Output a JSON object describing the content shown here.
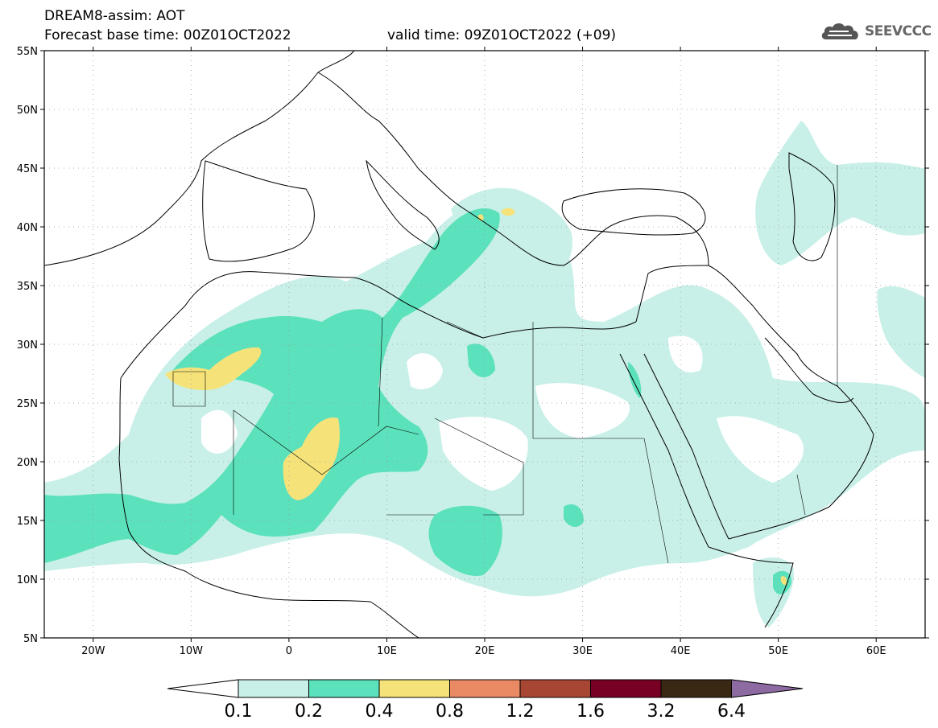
{
  "header": {
    "model_line": "DREAM8-assim: AOT",
    "base_time_line": "Forecast base time: 00Z01OCT2022",
    "valid_time_line": "valid time: 09Z01OCT2022 (+09)"
  },
  "logo": {
    "text": "SEEVCCC",
    "icon": "cloud-icon"
  },
  "map": {
    "lon_range": [
      -25,
      65
    ],
    "lat_range": [
      5,
      55
    ],
    "lat_ticks": [
      {
        "value": 55,
        "label": "55N"
      },
      {
        "value": 50,
        "label": "50N"
      },
      {
        "value": 45,
        "label": "45N"
      },
      {
        "value": 40,
        "label": "40N"
      },
      {
        "value": 35,
        "label": "35N"
      },
      {
        "value": 30,
        "label": "30N"
      },
      {
        "value": 25,
        "label": "25N"
      },
      {
        "value": 20,
        "label": "20N"
      },
      {
        "value": 15,
        "label": "15N"
      },
      {
        "value": 10,
        "label": "10N"
      },
      {
        "value": 5,
        "label": "5N"
      }
    ],
    "lon_ticks": [
      {
        "value": -20,
        "label": "20W"
      },
      {
        "value": -10,
        "label": "10W"
      },
      {
        "value": 0,
        "label": "0"
      },
      {
        "value": 10,
        "label": "10E"
      },
      {
        "value": 20,
        "label": "20E"
      },
      {
        "value": 30,
        "label": "30E"
      },
      {
        "value": 40,
        "label": "40E"
      },
      {
        "value": 50,
        "label": "50E"
      },
      {
        "value": 60,
        "label": "60E"
      }
    ],
    "grid": true
  },
  "colorbar": {
    "labels": [
      "0.1",
      "0.2",
      "0.4",
      "0.8",
      "1.2",
      "1.6",
      "3.2",
      "6.4"
    ],
    "colors": [
      "#ffffff",
      "#c8f0e8",
      "#5ce1bd",
      "#f5e37a",
      "#e98a64",
      "#a84634",
      "#780024",
      "#3a2714",
      "#8e6aa3"
    ]
  }
}
